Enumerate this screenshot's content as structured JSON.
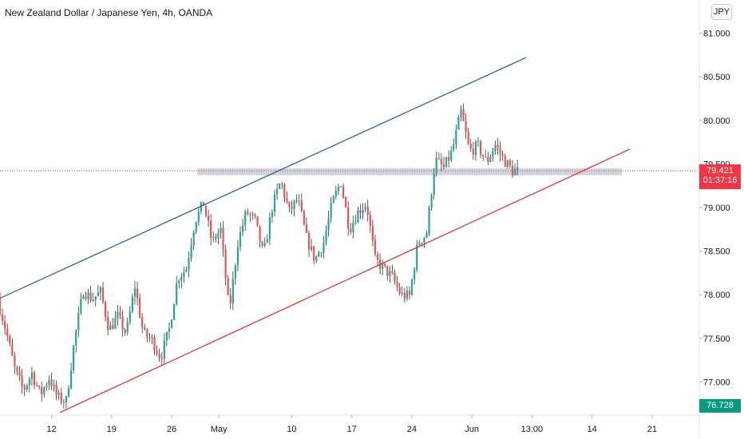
{
  "header": {
    "title": "New Zealand Dollar / Japanese Yen, 4h, OANDA",
    "currency_button": "JPY"
  },
  "price_badges": {
    "current_price": "79.421",
    "countdown": "01:37:16",
    "marker_price": "76.728"
  },
  "colors": {
    "bull": "#26a69a",
    "bear": "#ef5350",
    "upper_trendline": "#1f5a96",
    "lower_trendline": "#d32f2f",
    "current_price_badge": "#f23645",
    "marker_badge": "#089981",
    "zone": "#c8ccd5"
  },
  "chart_data": {
    "type": "candlestick",
    "title": "New Zealand Dollar / Japanese Yen, 4h, OANDA",
    "y_axis": {
      "range": [
        76.62,
        81.38
      ],
      "ticks": [
        "81.000",
        "80.500",
        "80.000",
        "79.500",
        "79.000",
        "78.500",
        "78.000",
        "77.500",
        "77.000"
      ]
    },
    "x_axis": {
      "ticks": [
        {
          "label": "12",
          "x": 12
        },
        {
          "label": "19",
          "x": 19
        },
        {
          "label": "26",
          "x": 26
        },
        {
          "label": "May",
          "x": 31.5
        },
        {
          "label": "10",
          "x": 40
        },
        {
          "label": "17",
          "x": 47
        },
        {
          "label": "24",
          "x": 54
        },
        {
          "label": "Jun",
          "x": 61
        },
        {
          "label": "13:00",
          "x": 68
        },
        {
          "label": "14",
          "x": 75
        },
        {
          "label": "21",
          "x": 82
        }
      ],
      "range": [
        6,
        87.5
      ]
    },
    "current_price": 79.421,
    "resistance_zone": {
      "from": 29,
      "to": 78.5,
      "low": 79.37,
      "high": 79.45
    },
    "trendlines": [
      {
        "name": "upper",
        "points": [
          [
            6,
            77.96
          ],
          [
            67.3,
            80.72
          ]
        ]
      },
      {
        "name": "lower",
        "points": [
          [
            13,
            76.65
          ],
          [
            79.4,
            79.67
          ]
        ]
      }
    ],
    "price_anchors": [
      [
        6,
        77.95
      ],
      [
        7,
        77.58
      ],
      [
        8,
        77.15
      ],
      [
        9,
        76.9
      ],
      [
        10,
        77.1
      ],
      [
        11,
        76.85
      ],
      [
        12,
        77.05
      ],
      [
        13,
        76.82
      ],
      [
        14,
        76.78
      ],
      [
        15,
        77.5
      ],
      [
        16,
        78.05
      ],
      [
        17,
        77.95
      ],
      [
        18,
        78.03
      ],
      [
        19,
        77.6
      ],
      [
        20,
        77.75
      ],
      [
        21,
        77.55
      ],
      [
        22,
        78.1
      ],
      [
        23,
        77.55
      ],
      [
        24,
        77.48
      ],
      [
        25,
        77.28
      ],
      [
        26,
        77.6
      ],
      [
        27,
        78.2
      ],
      [
        28,
        78.3
      ],
      [
        29,
        78.85
      ],
      [
        30,
        79.05
      ],
      [
        31,
        78.6
      ],
      [
        32,
        78.75
      ],
      [
        33,
        77.8
      ],
      [
        34,
        78.6
      ],
      [
        35,
        78.95
      ],
      [
        36,
        78.85
      ],
      [
        37,
        78.45
      ],
      [
        38,
        79.0
      ],
      [
        39,
        79.3
      ],
      [
        40,
        78.95
      ],
      [
        41,
        79.1
      ],
      [
        42,
        78.65
      ],
      [
        43,
        78.4
      ],
      [
        44,
        78.6
      ],
      [
        45,
        79.05
      ],
      [
        46,
        79.3
      ],
      [
        47,
        78.75
      ],
      [
        48,
        78.95
      ],
      [
        49,
        79.05
      ],
      [
        50,
        78.4
      ],
      [
        51,
        78.3
      ],
      [
        52,
        78.2
      ],
      [
        53,
        78.0
      ],
      [
        54,
        77.98
      ],
      [
        55,
        78.6
      ],
      [
        56,
        78.7
      ],
      [
        57,
        79.55
      ],
      [
        58,
        79.45
      ],
      [
        59,
        79.65
      ],
      [
        60,
        80.1
      ],
      [
        61,
        79.65
      ],
      [
        62,
        79.7
      ],
      [
        63,
        79.52
      ],
      [
        64,
        79.72
      ],
      [
        65,
        79.55
      ],
      [
        66,
        79.42
      ]
    ],
    "candle_span": [
      6,
      66.3
    ],
    "candle_count": 212
  }
}
